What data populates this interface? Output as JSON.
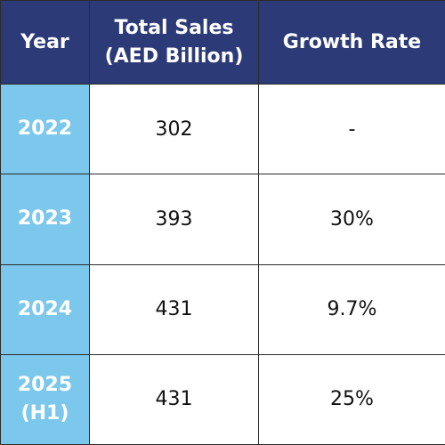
{
  "chart_data": {
    "type": "table",
    "columns": [
      "Year",
      "Total Sales (AED Billion)",
      "Growth Rate"
    ],
    "header": {
      "year": "Year",
      "sales_line1": "Total Sales",
      "sales_line2": "(AED Billion)",
      "growth": "Growth Rate"
    },
    "rows": [
      {
        "year": "2022",
        "year_sub": "",
        "sales": "302",
        "growth": "-"
      },
      {
        "year": "2023",
        "year_sub": "",
        "sales": "393",
        "growth": "30%"
      },
      {
        "year": "2024",
        "year_sub": "",
        "sales": "431",
        "growth": "9.7%"
      },
      {
        "year": "2025",
        "year_sub": "(H1)",
        "sales": "431",
        "growth": "25%"
      }
    ],
    "colors": {
      "header_bg": "#2c3a78",
      "year_bg": "#7cc8ed",
      "header_text": "#ffffff",
      "body_text": "#111111"
    }
  }
}
